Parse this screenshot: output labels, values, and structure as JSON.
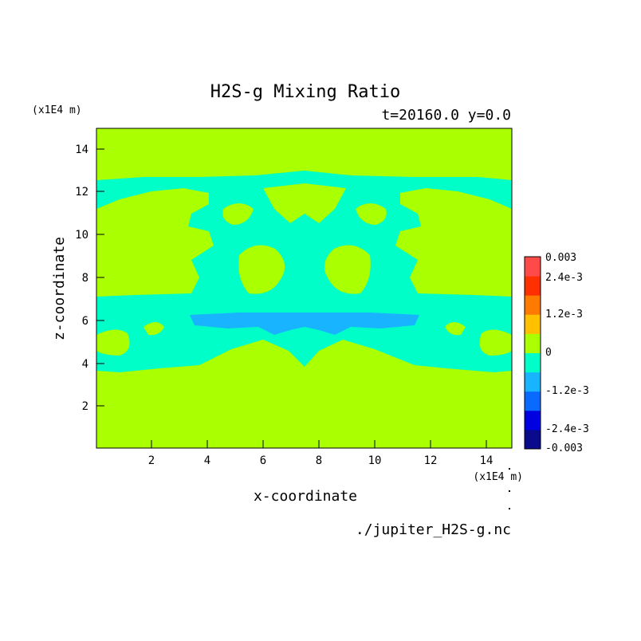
{
  "chart_data": {
    "type": "heatmap",
    "title": "H2S-g Mixing Ratio",
    "subtitle": "t=20160.0 y=0.0",
    "xlabel": "x-coordinate",
    "ylabel": "z-coordinate",
    "x_unit": "(x1E4 m)",
    "y_unit": "(x1E4 m)",
    "source_file": "./jupiter_H2S-g.nc",
    "xlim": [
      0.05,
      14.85
    ],
    "ylim": [
      0.05,
      14.95
    ],
    "x_ticks": [
      2,
      4,
      6,
      8,
      10,
      12,
      14
    ],
    "y_ticks": [
      2,
      4,
      6,
      8,
      10,
      12,
      14
    ],
    "background_level": "0 to 6e-4",
    "colorbar": {
      "levels": [
        -0.003,
        -0.0024,
        -0.0018,
        -0.0012,
        -0.0006,
        0,
        0.0006,
        0.0012,
        0.0018,
        0.0024,
        0.003
      ],
      "colors": [
        "#0a0a8c",
        "#0000e0",
        "#0a6aff",
        "#18b4ff",
        "#00ffc8",
        "#aaff00",
        "#ffc000",
        "#ff7a00",
        "#ff3000",
        "#ff4a4a"
      ],
      "tick_labels": [
        "0.003",
        "2.4e-3",
        "1.2e-3",
        "0",
        "-1.2e-3",
        "-2.4e-3",
        "-0.003"
      ],
      "tick_values": [
        0.003,
        0.0024,
        0.0012,
        0,
        -0.0012,
        -0.0024,
        -0.003
      ]
    }
  }
}
